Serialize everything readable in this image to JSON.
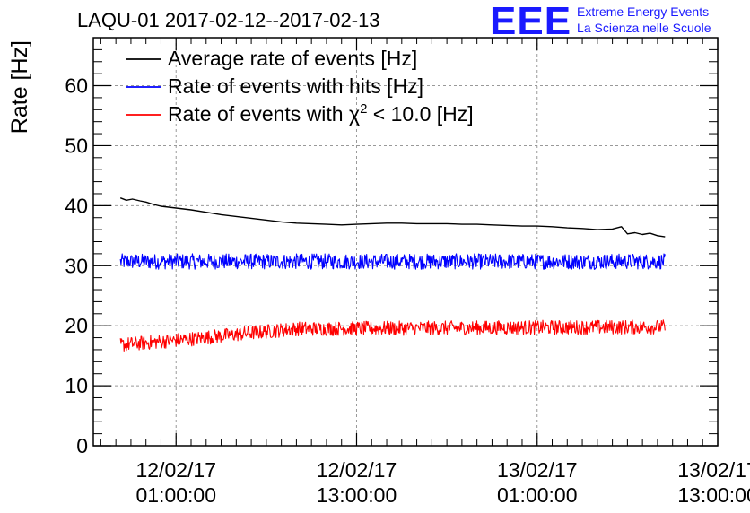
{
  "header": {
    "title": "LAQU-01 2017-02-12--2017-02-13",
    "logo_mark": "EEE",
    "logo_line1": "Extreme Energy Events",
    "logo_line2": "La Scienza nelle Scuole"
  },
  "chart_data": {
    "type": "line",
    "title": "LAQU-01 2017-02-12--2017-02-13",
    "xlabel": "",
    "ylabel": "Rate [Hz]",
    "ylim": [
      0,
      68
    ],
    "xlim_hours": [
      -4.5,
      37
    ],
    "yticks": [
      0,
      10,
      20,
      30,
      40,
      50,
      60
    ],
    "xticks": [
      {
        "hour": 1,
        "label1": "12/02/17",
        "label2": "01:00:00"
      },
      {
        "hour": 13,
        "label1": "12/02/17",
        "label2": "13:00:00"
      },
      {
        "hour": 25,
        "label1": "13/02/17",
        "label2": "01:00:00"
      },
      {
        "hour": 37,
        "label1": "13/02/17",
        "label2": "13:00:00"
      }
    ],
    "grid": true,
    "legend_placement": "top-left",
    "series": [
      {
        "name": "Average rate of events [Hz]",
        "legend_main": "Average rate of events [Hz]",
        "color": "#000000",
        "x_hours": [
          -2.7,
          -2.3,
          -1.9,
          -1.4,
          -1.0,
          -0.5,
          0.0,
          1.0,
          2.0,
          3.0,
          4.0,
          5.0,
          6.0,
          7.0,
          8.0,
          9.0,
          10.0,
          11.0,
          12.0,
          13.0,
          14.0,
          15.0,
          16.0,
          17.0,
          18.0,
          19.0,
          20.0,
          21.0,
          22.0,
          23.0,
          24.0,
          25.0,
          26.0,
          27.0,
          28.0,
          29.0,
          30.0,
          30.6,
          31.0,
          31.5,
          32.0,
          32.5,
          33.0,
          33.5
        ],
        "values": [
          41.3,
          40.9,
          41.1,
          40.8,
          40.6,
          40.2,
          39.9,
          39.6,
          39.3,
          38.9,
          38.5,
          38.2,
          37.9,
          37.6,
          37.3,
          37.1,
          37.0,
          36.9,
          36.8,
          36.9,
          37.0,
          37.1,
          37.1,
          37.0,
          37.0,
          37.0,
          36.9,
          36.9,
          36.8,
          36.7,
          36.6,
          36.6,
          36.5,
          36.3,
          36.2,
          36.0,
          36.1,
          36.5,
          35.3,
          35.5,
          35.2,
          35.4,
          35.0,
          34.8
        ]
      },
      {
        "name": "Rate of events with hits [Hz]",
        "legend_main": "Rate of events with hits [Hz]",
        "color": "#0000ff",
        "x_start_hours": -2.7,
        "x_end_hours": 33.5,
        "mean": 30.7,
        "noise_amplitude": 1.3
      },
      {
        "name": "Rate of events with chi2 < 10.0 [Hz]",
        "legend_main": "Rate of events with χ",
        "legend_sup": "2",
        "legend_rest": " < 10.0 [Hz]",
        "color": "#ff0000",
        "x_start_hours": -2.7,
        "x_end_hours": 33.5,
        "trend_hours": [
          -2.7,
          2.0,
          6.0,
          9.0,
          33.5
        ],
        "trend_values": [
          16.8,
          17.8,
          18.8,
          19.5,
          19.8
        ],
        "noise_amplitude": 1.2
      }
    ]
  }
}
